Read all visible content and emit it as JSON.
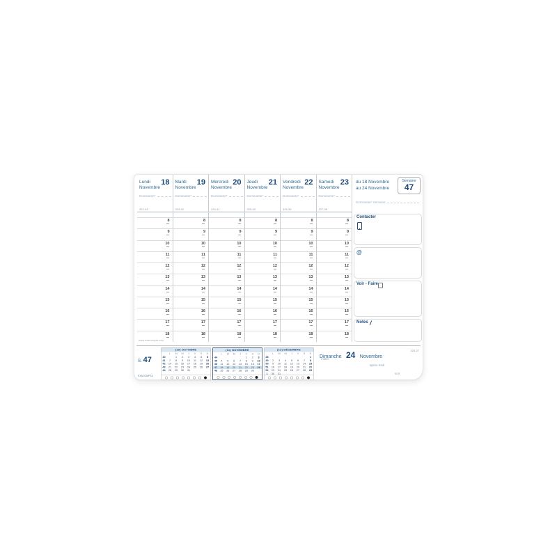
{
  "header": {
    "range_line1": "du 18 Novembre",
    "range_line2": "au 24 Novembre",
    "week_word": "Semaine",
    "week_number": "47",
    "dominante_week": "Dominante* Semaine"
  },
  "days": [
    {
      "name": "Lundi",
      "month": "Novembre",
      "num": "18",
      "dominante": "Dominante*",
      "count": "322-43"
    },
    {
      "name": "Mardi",
      "month": "Novembre",
      "num": "19",
      "dominante": "Dominante*",
      "count": "323-42"
    },
    {
      "name": "Mercredi",
      "month": "Novembre",
      "num": "20",
      "dominante": "Dominante*",
      "count": "324-41"
    },
    {
      "name": "Jeudi",
      "month": "Novembre",
      "num": "21",
      "dominante": "Dominante*",
      "count": "325-40"
    },
    {
      "name": "Vendredi",
      "month": "Novembre",
      "num": "22",
      "dominante": "Dominante*",
      "count": "326-39"
    },
    {
      "name": "Samedi",
      "month": "Novembre",
      "num": "23",
      "dominante": "Dominante*",
      "count": "327-38"
    }
  ],
  "hours": [
    "8",
    "9",
    "10",
    "11",
    "12",
    "13",
    "14",
    "15",
    "16",
    "17",
    "18"
  ],
  "panel": {
    "contact_label": "Contacter",
    "at_symbol": "@",
    "todo_label": "Voir - Faire",
    "notes_label": "Notes",
    "pen_glyph": "/"
  },
  "sunday": {
    "name": "Dimanche",
    "num": "24",
    "month": "Novembre",
    "count": "328-37",
    "morning": "matin",
    "afternoon": "après-midi",
    "evening": "soir"
  },
  "band": {
    "s_prefix": "S.",
    "s_num": "47",
    "micro_url": "www.exacompta.com",
    "micro_copy": "EXACOMPTA"
  },
  "minicalendars": {
    "dow": [
      "L",
      "M",
      "M",
      "J",
      "V",
      "S",
      "D"
    ],
    "months": [
      {
        "title": "(10) OCTOBRE",
        "current": false,
        "highlight": "",
        "weeks": [
          [
            "40",
            "",
            "1",
            "2",
            "3",
            "4",
            "5",
            "6"
          ],
          [
            "41",
            "7",
            "8",
            "9",
            "10",
            "11",
            "12",
            "13"
          ],
          [
            "42",
            "14",
            "15",
            "16",
            "17",
            "18",
            "19",
            "20"
          ],
          [
            "43",
            "21",
            "22",
            "23",
            "24",
            "25",
            "26",
            "27"
          ],
          [
            "44",
            "28",
            "29",
            "30",
            "31",
            "",
            "",
            ""
          ]
        ]
      },
      {
        "title": "(11) NOVEMBRE",
        "current": true,
        "highlight": "47",
        "weeks": [
          [
            "44",
            "",
            "",
            "",
            "",
            "1",
            "2",
            "3"
          ],
          [
            "45",
            "4",
            "5",
            "6",
            "7",
            "8",
            "9",
            "10"
          ],
          [
            "46",
            "11",
            "12",
            "13",
            "14",
            "15",
            "16",
            "17"
          ],
          [
            "47",
            "18",
            "19",
            "20",
            "21",
            "22",
            "23",
            "24"
          ],
          [
            "48",
            "25",
            "26",
            "27",
            "28",
            "29",
            "30",
            ""
          ]
        ]
      },
      {
        "title": "(12) DÉCEMBRE",
        "current": false,
        "highlight": "",
        "weeks": [
          [
            "48",
            "",
            "",
            "",
            "",
            "",
            "",
            "1"
          ],
          [
            "49",
            "2",
            "3",
            "4",
            "5",
            "6",
            "7",
            "8"
          ],
          [
            "50",
            "9",
            "10",
            "11",
            "12",
            "13",
            "14",
            "15"
          ],
          [
            "51",
            "16",
            "17",
            "18",
            "19",
            "20",
            "21",
            "22"
          ],
          [
            "52",
            "23",
            "24",
            "25",
            "26",
            "27",
            "28",
            "29"
          ],
          [
            "1",
            "30",
            "31",
            "",
            "",
            "",
            "",
            ""
          ]
        ]
      }
    ]
  }
}
